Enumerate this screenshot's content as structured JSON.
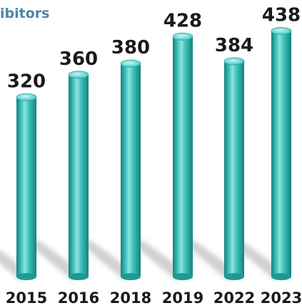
{
  "chart_data": {
    "type": "bar",
    "title": "ibitors",
    "categories": [
      "2015",
      "2016",
      "2018",
      "2019",
      "2022",
      "2023"
    ],
    "values": [
      320,
      360,
      380,
      428,
      384,
      438
    ],
    "value_labels": [
      "320",
      "360",
      "380",
      "428",
      "384",
      "438"
    ],
    "ylim": [
      0,
      450
    ],
    "grid": false,
    "bar_style": "3d-cylinder",
    "colors": {
      "bar": "#2fb8b3",
      "bar_highlight": "#9ee8e3",
      "bar_shadow": "#16847f",
      "title": "#4a86a8",
      "text": "#1a1a1a"
    }
  }
}
